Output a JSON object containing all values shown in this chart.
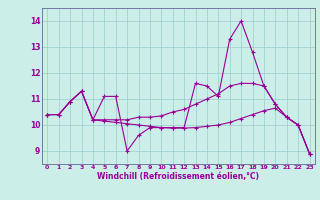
{
  "title": "",
  "xlabel": "Windchill (Refroidissement éolien,°C)",
  "ylabel": "",
  "bg_color": "#cceee8",
  "line_color": "#990099",
  "x_values": [
    0,
    1,
    2,
    3,
    4,
    5,
    6,
    7,
    8,
    9,
    10,
    11,
    12,
    13,
    14,
    15,
    16,
    17,
    18,
    19,
    20,
    21,
    22,
    23
  ],
  "series1": [
    10.4,
    10.4,
    10.9,
    11.3,
    10.2,
    11.1,
    11.1,
    9.0,
    9.6,
    9.9,
    9.9,
    9.9,
    9.9,
    11.6,
    11.5,
    11.1,
    13.3,
    14.0,
    12.8,
    11.5,
    10.8,
    10.3,
    10.0,
    8.9
  ],
  "series2": [
    10.4,
    10.4,
    10.9,
    11.3,
    10.2,
    10.2,
    10.2,
    10.2,
    10.3,
    10.3,
    10.35,
    10.5,
    10.6,
    10.8,
    11.0,
    11.2,
    11.5,
    11.6,
    11.6,
    11.5,
    10.8,
    10.3,
    10.0,
    8.9
  ],
  "series3": [
    10.4,
    10.4,
    10.9,
    11.3,
    10.2,
    10.15,
    10.1,
    10.05,
    10.0,
    9.95,
    9.9,
    9.88,
    9.88,
    9.9,
    9.95,
    10.0,
    10.1,
    10.25,
    10.4,
    10.55,
    10.65,
    10.3,
    10.0,
    8.9
  ],
  "ylim": [
    8.5,
    14.5
  ],
  "xlim": [
    -0.5,
    23.5
  ],
  "yticks": [
    9,
    10,
    11,
    12,
    13,
    14
  ],
  "xticks": [
    0,
    1,
    2,
    3,
    4,
    5,
    6,
    7,
    8,
    9,
    10,
    11,
    12,
    13,
    14,
    15,
    16,
    17,
    18,
    19,
    20,
    21,
    22,
    23
  ],
  "grid_color": "#99cccc",
  "spine_color": "#666699",
  "tick_color": "#990099",
  "label_color": "#990099",
  "figsize": [
    3.2,
    2.0
  ],
  "dpi": 100
}
